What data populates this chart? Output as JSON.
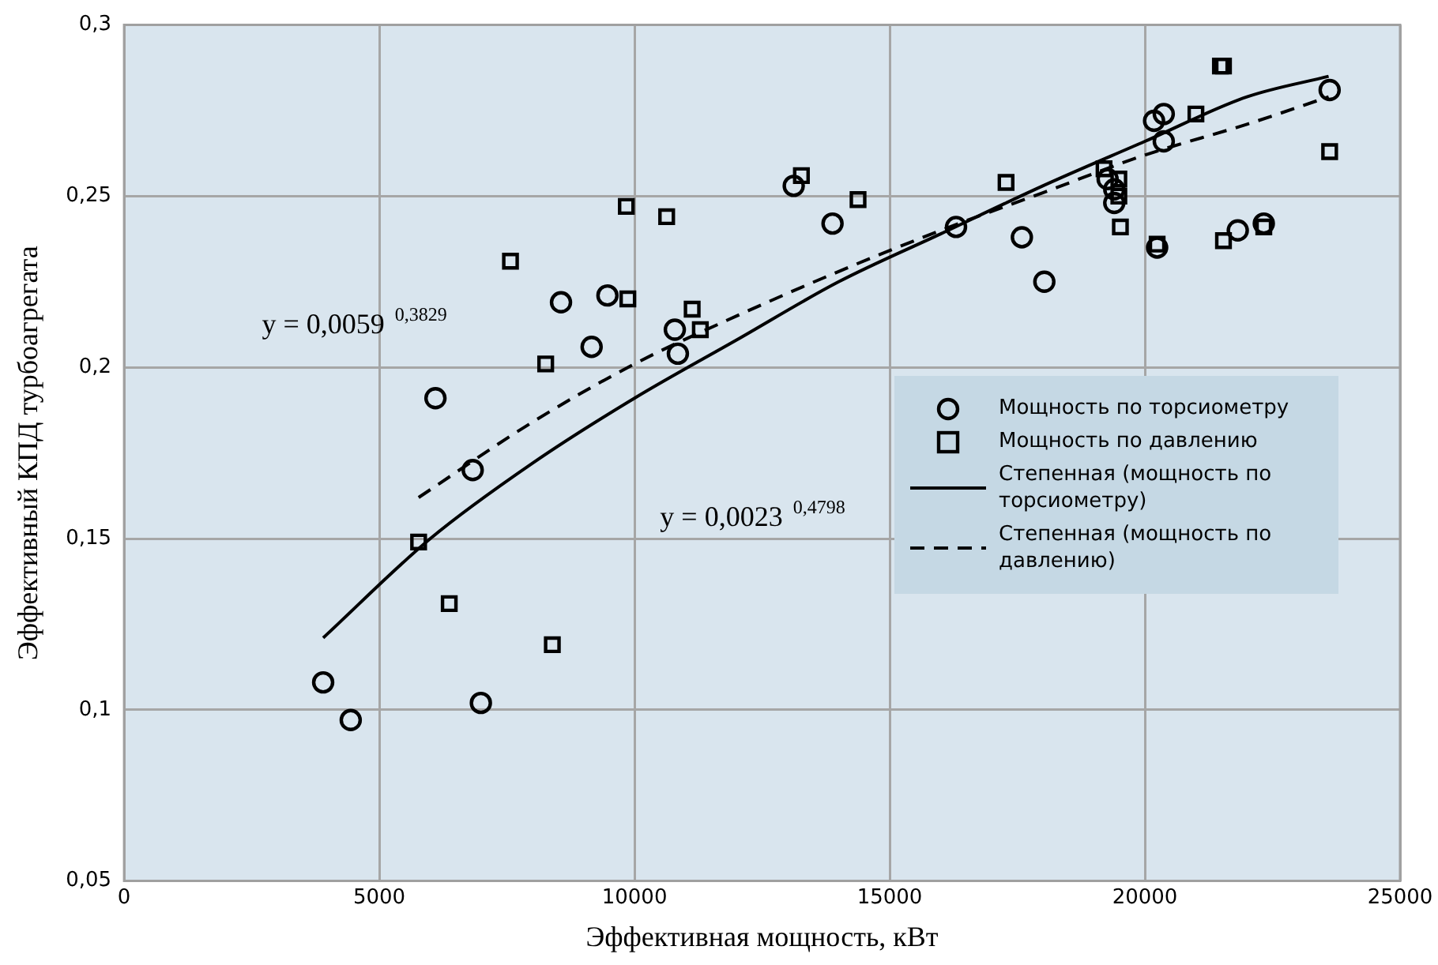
{
  "chart_data": {
    "type": "scatter",
    "xlabel": "Эффективная мощность, кВт",
    "ylabel": "Эффективный КПД турбоагрегата",
    "xlim": [
      0,
      25000
    ],
    "xticks": [
      0,
      5000,
      10000,
      15000,
      20000,
      25000
    ],
    "ylim": [
      0.05,
      0.3
    ],
    "yticks": [
      {
        "value": 0.05,
        "label": "0,05"
      },
      {
        "value": 0.1,
        "label": "0,1"
      },
      {
        "value": 0.15,
        "label": "0,15"
      },
      {
        "value": 0.2,
        "label": "0,2"
      },
      {
        "value": 0.25,
        "label": "0,25"
      },
      {
        "value": 0.3,
        "label": "0,3"
      }
    ],
    "grid": true,
    "legend": "right",
    "series": [
      {
        "name": "Мощность по торсиометру",
        "type": "scatter",
        "marker": "circle",
        "color": "#000000",
        "x": [
          3900,
          4440,
          6100,
          6830,
          6990,
          8560,
          9160,
          9470,
          10790,
          10850,
          13120,
          13880,
          16300,
          17590,
          18030,
          19270,
          19400,
          19400,
          20180,
          20370,
          20370,
          20240,
          21820,
          22330,
          23620
        ],
        "values": [
          0.108,
          0.097,
          0.191,
          0.17,
          0.102,
          0.219,
          0.206,
          0.221,
          0.211,
          0.204,
          0.253,
          0.242,
          0.241,
          0.238,
          0.225,
          0.255,
          0.252,
          0.248,
          0.272,
          0.274,
          0.266,
          0.235,
          0.24,
          0.242,
          0.281
        ]
      },
      {
        "name": "Мощность по давлению",
        "type": "scatter",
        "marker": "square",
        "color": "#000000",
        "x": [
          5770,
          6370,
          7570,
          8260,
          8390,
          9840,
          9870,
          10630,
          11130,
          11290,
          13270,
          14380,
          17280,
          19200,
          19490,
          19490,
          19520,
          20240,
          21000,
          21480,
          21540,
          21540,
          22330,
          23620
        ],
        "values": [
          0.149,
          0.131,
          0.231,
          0.201,
          0.119,
          0.247,
          0.22,
          0.244,
          0.217,
          0.211,
          0.256,
          0.249,
          0.254,
          0.258,
          0.255,
          0.25,
          0.241,
          0.236,
          0.274,
          0.288,
          0.288,
          0.237,
          0.241,
          0.263
        ]
      },
      {
        "name": "Степенная (мощность по торсиометру)",
        "type": "line",
        "line_style": "solid",
        "marker": "none",
        "color": "#000000",
        "x": [
          3900,
          6000,
          8000,
          10000,
          12000,
          14000,
          16000,
          18000,
          20000,
          22000,
          23600
        ],
        "values": [
          0.121,
          0.15,
          0.172,
          0.191,
          0.208,
          0.225,
          0.239,
          0.253,
          0.266,
          0.279,
          0.285
        ]
      },
      {
        "name": "Степенная (мощность по давлению)",
        "type": "line",
        "line_style": "dashed",
        "marker": "none",
        "color": "#000000",
        "x": [
          5770,
          8000,
          10000,
          12000,
          14000,
          16000,
          18000,
          20000,
          22000,
          23600
        ],
        "values": [
          0.162,
          0.184,
          0.201,
          0.215,
          0.228,
          0.24,
          0.251,
          0.262,
          0.271,
          0.279
        ]
      }
    ],
    "annotations": [
      "y = 0,0059 $^{0,3829}$",
      "y = 0,0023 $^{0,4798}$"
    ]
  }
}
